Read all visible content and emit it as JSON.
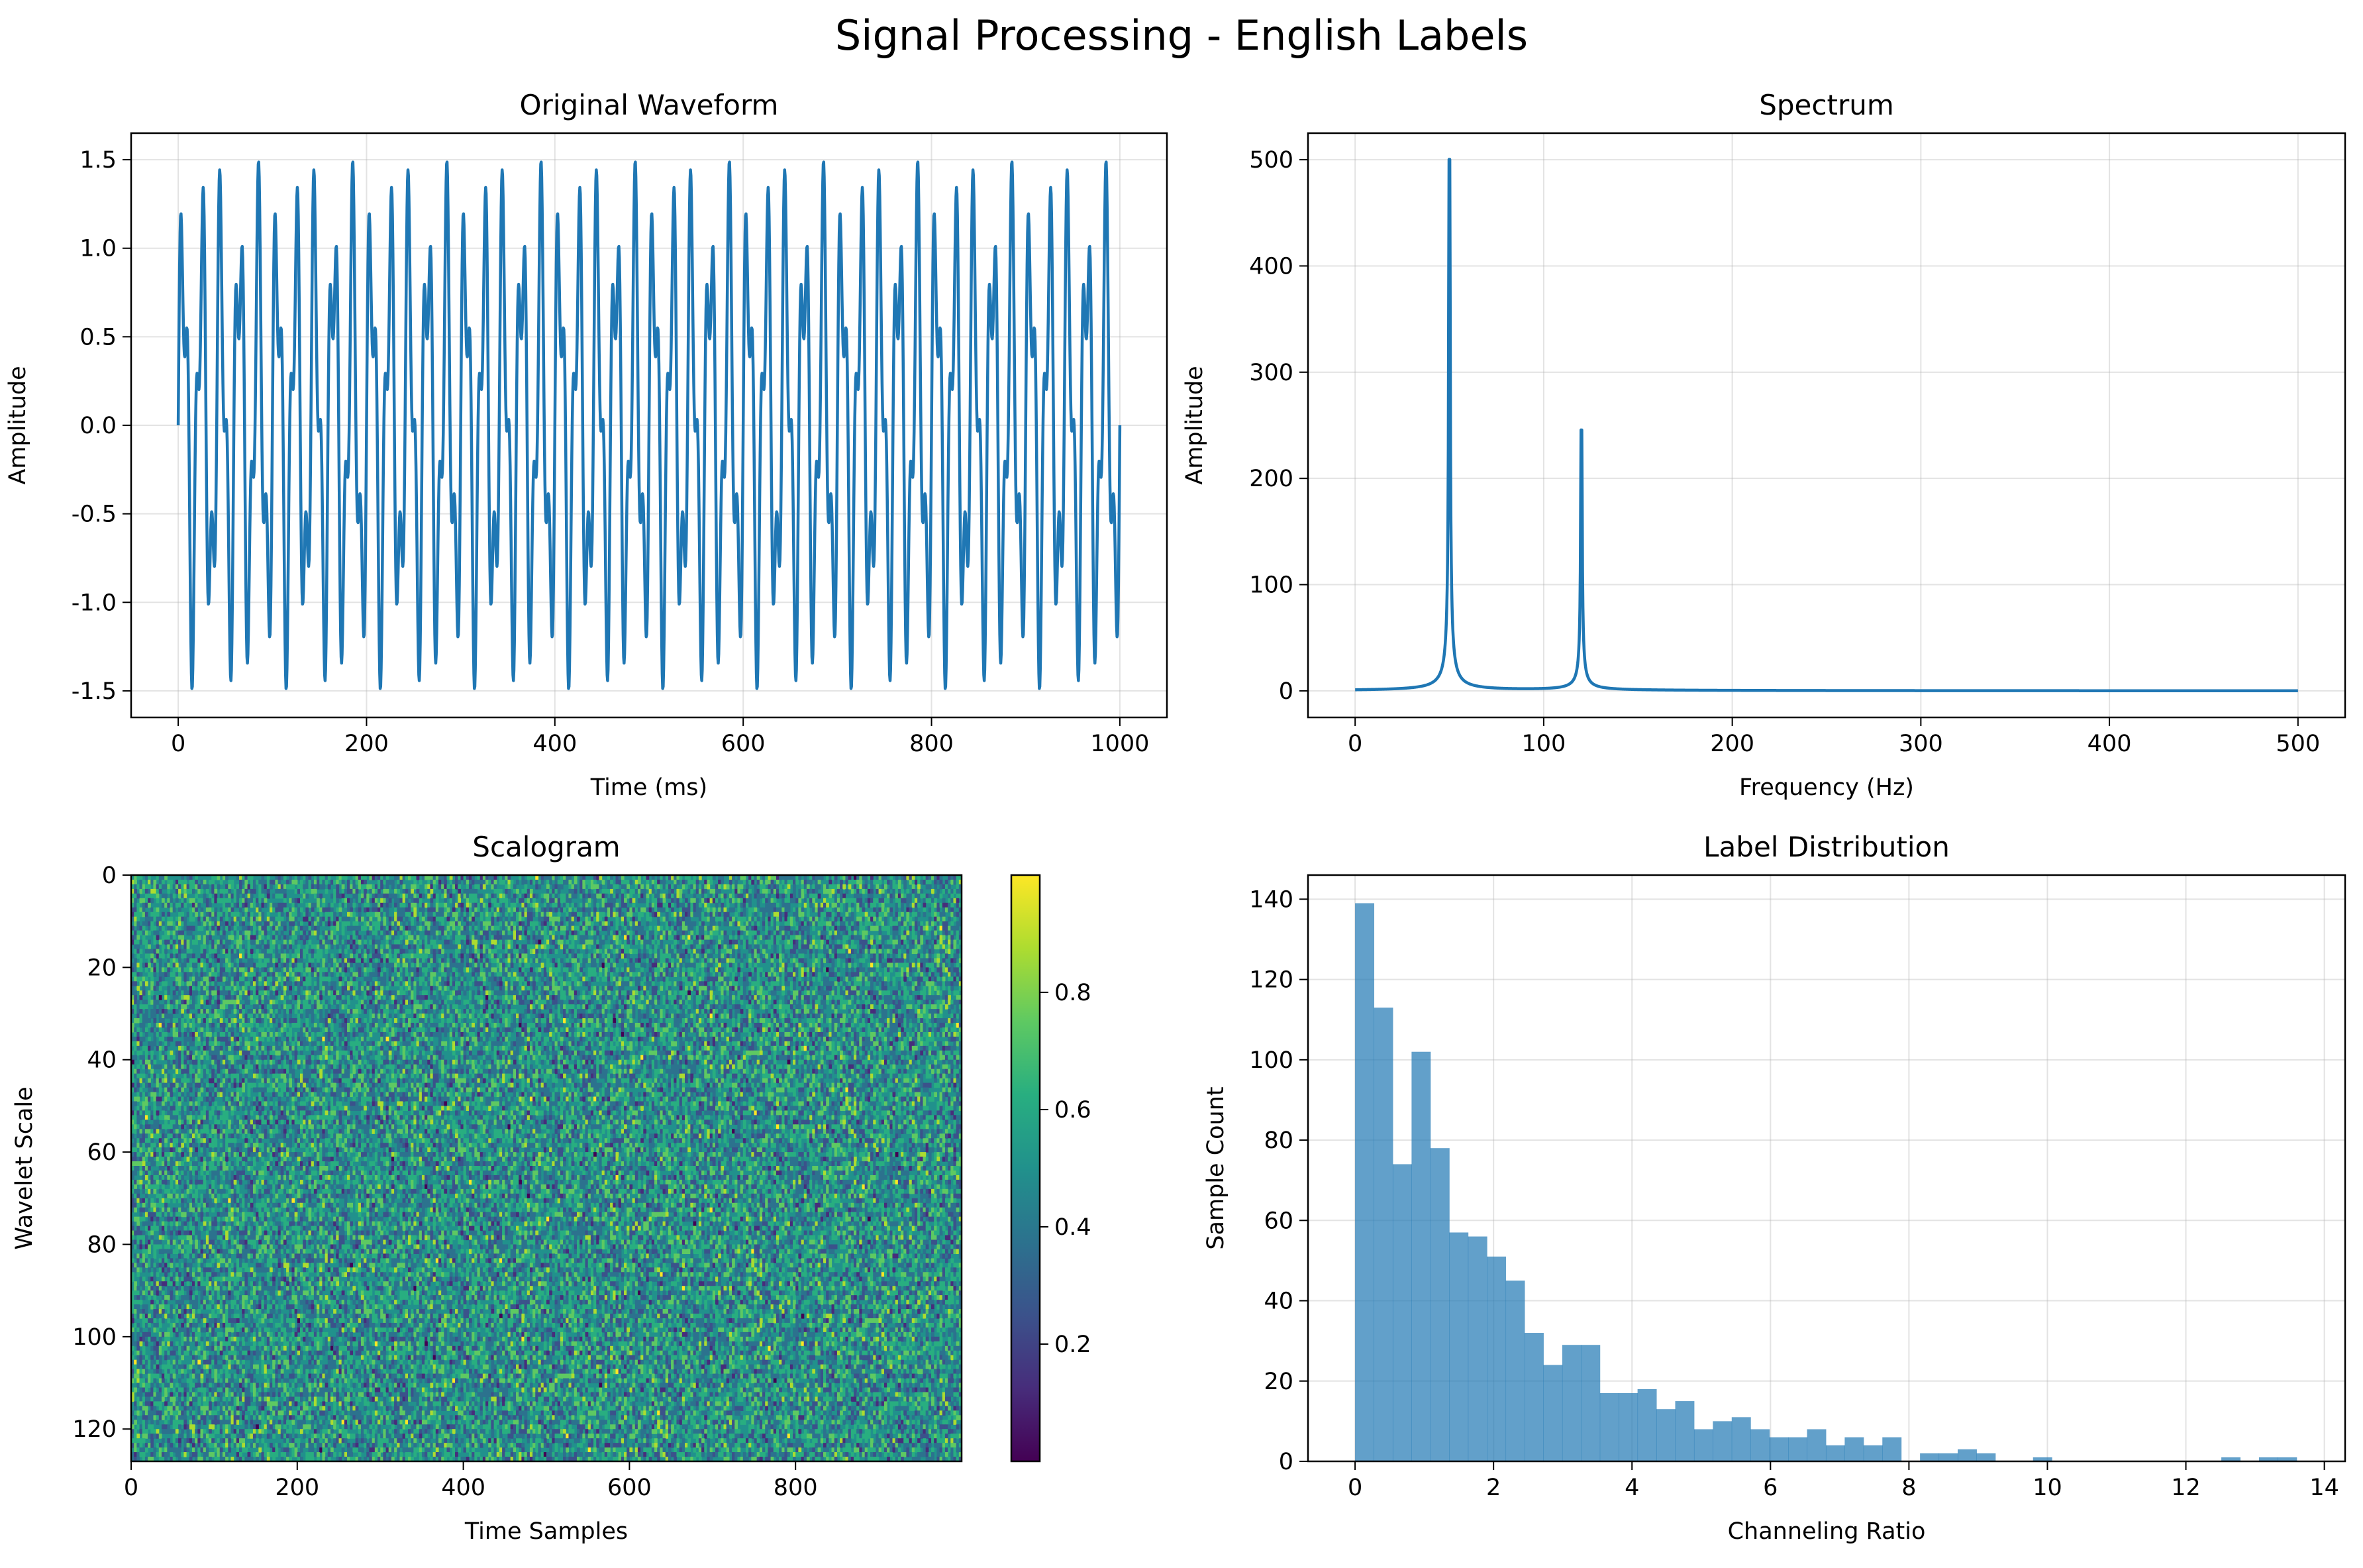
{
  "figure": {
    "suptitle": "Signal Processing - English Labels"
  },
  "chart_data": [
    {
      "type": "line",
      "title": "Original Waveform",
      "xlabel": "Time (ms)",
      "ylabel": "Amplitude",
      "xlim": [
        -50,
        1050
      ],
      "ylim": [
        -1.65,
        1.65
      ],
      "xticks": [
        0,
        200,
        400,
        600,
        800,
        1000
      ],
      "xtick_labels": [
        "0",
        "200",
        "400",
        "600",
        "800",
        "1000"
      ],
      "yticks": [
        -1.5,
        -1.0,
        -0.5,
        0.0,
        0.5,
        1.0,
        1.5
      ],
      "ytick_labels": [
        "-1.5",
        "-1.0",
        "-0.5",
        "0.0",
        "0.5",
        "1.0",
        "1.5"
      ],
      "grid": true,
      "series": [
        {
          "components": [
            {
              "frequency_hz": 50,
              "amplitude": 1.0
            },
            {
              "frequency_hz": 120,
              "amplitude": 0.5
            }
          ],
          "x_range": [
            0,
            1000
          ],
          "samples": 1000,
          "color": "#1f77b4"
        }
      ]
    },
    {
      "type": "line",
      "title": "Spectrum",
      "xlabel": "Frequency (Hz)",
      "ylabel": "Amplitude",
      "xlim": [
        -25,
        525
      ],
      "ylim": [
        -25,
        525
      ],
      "xticks": [
        0,
        100,
        200,
        300,
        400,
        500
      ],
      "xtick_labels": [
        "0",
        "100",
        "200",
        "300",
        "400",
        "500"
      ],
      "yticks": [
        0,
        100,
        200,
        300,
        400,
        500
      ],
      "ytick_labels": [
        "0",
        "100",
        "200",
        "300",
        "400",
        "500"
      ],
      "grid": true,
      "series": [
        {
          "x_range": [
            0,
            500
          ],
          "peaks": [
            {
              "frequency_hz": 50,
              "amplitude": 500
            },
            {
              "frequency_hz": 120,
              "amplitude": 245
            }
          ],
          "color": "#1f77b4"
        }
      ]
    },
    {
      "type": "heatmap",
      "title": "Scalogram",
      "xlabel": "Time Samples",
      "ylabel": "Wavelet Scale",
      "colormap": "viridis",
      "xlim": [
        0,
        1000
      ],
      "ylim": [
        127,
        0
      ],
      "rows": 127,
      "columns": 1000,
      "value_range": [
        0,
        1
      ],
      "xticks": [
        0,
        200,
        400,
        600,
        800
      ],
      "xtick_labels": [
        "0",
        "200",
        "400",
        "600",
        "800"
      ],
      "yticks": [
        0,
        20,
        40,
        60,
        80,
        100,
        120
      ],
      "ytick_labels": [
        "0",
        "20",
        "40",
        "60",
        "80",
        "100",
        "120"
      ],
      "colorbar_ticks": [
        0.2,
        0.4,
        0.6,
        0.8
      ],
      "colorbar_tick_labels": [
        "0.2",
        "0.4",
        "0.6",
        "0.8"
      ],
      "colorbar_range": [
        0.0,
        1.0
      ]
    },
    {
      "type": "bar",
      "title": "Label Distribution",
      "xlabel": "Channeling Ratio",
      "ylabel": "Sample Count",
      "xlim": [
        -0.68,
        14.3
      ],
      "ylim": [
        0,
        146
      ],
      "xticks": [
        0,
        2,
        4,
        6,
        8,
        10,
        12,
        14
      ],
      "xtick_labels": [
        "0",
        "2",
        "4",
        "6",
        "8",
        "10",
        "12",
        "14"
      ],
      "yticks": [
        0,
        20,
        40,
        60,
        80,
        100,
        120,
        140
      ],
      "ytick_labels": [
        "0",
        "20",
        "40",
        "60",
        "80",
        "100",
        "120",
        "140"
      ],
      "grid": true,
      "color": "#1f77b4",
      "bin_start": 0,
      "bin_width": 0.272,
      "counts": [
        139,
        113,
        74,
        102,
        78,
        57,
        56,
        51,
        45,
        32,
        24,
        29,
        29,
        17,
        17,
        18,
        13,
        15,
        8,
        10,
        11,
        8,
        6,
        6,
        8,
        4,
        6,
        4,
        6,
        0,
        2,
        2,
        3,
        2,
        0,
        0,
        1,
        0,
        0,
        0,
        0,
        0,
        0,
        0,
        0,
        0,
        1,
        0,
        1,
        1
      ]
    }
  ]
}
